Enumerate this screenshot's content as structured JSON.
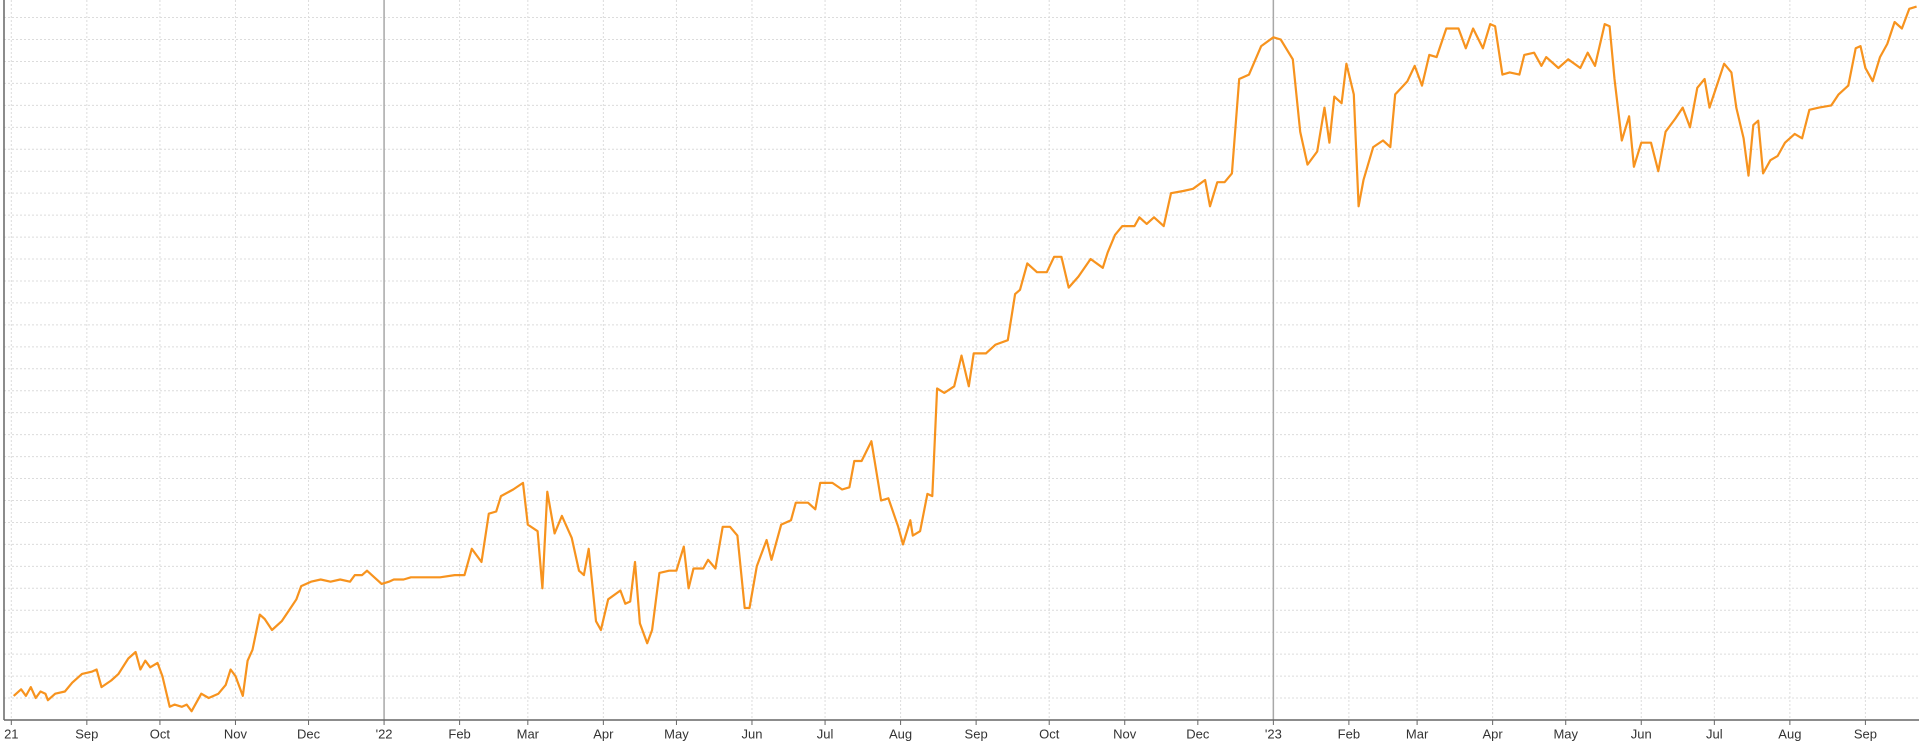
{
  "chart_data": {
    "type": "line",
    "color": "#f7931e",
    "grid": true,
    "xlim": [
      -3,
      783
    ],
    "ylim": [
      0,
      32.8
    ],
    "xticks": [
      {
        "value": 0,
        "label": "21"
      },
      {
        "value": 31,
        "label": "Sep"
      },
      {
        "value": 61,
        "label": "Oct"
      },
      {
        "value": 92,
        "label": "Nov"
      },
      {
        "value": 122,
        "label": "Dec"
      },
      {
        "value": 153,
        "label": "'22"
      },
      {
        "value": 184,
        "label": "Feb"
      },
      {
        "value": 212,
        "label": "Mar"
      },
      {
        "value": 243,
        "label": "Apr"
      },
      {
        "value": 273,
        "label": "May"
      },
      {
        "value": 304,
        "label": "Jun"
      },
      {
        "value": 334,
        "label": "Jul"
      },
      {
        "value": 365,
        "label": "Aug"
      },
      {
        "value": 396,
        "label": "Sep"
      },
      {
        "value": 426,
        "label": "Oct"
      },
      {
        "value": 457,
        "label": "Nov"
      },
      {
        "value": 487,
        "label": "Dec"
      },
      {
        "value": 518,
        "label": "'23"
      },
      {
        "value": 549,
        "label": "Feb"
      },
      {
        "value": 577,
        "label": "Mar"
      },
      {
        "value": 608,
        "label": "Apr"
      },
      {
        "value": 638,
        "label": "May"
      },
      {
        "value": 669,
        "label": "Jun"
      },
      {
        "value": 699,
        "label": "Jul"
      },
      {
        "value": 730,
        "label": "Aug"
      },
      {
        "value": 761,
        "label": "Sep"
      }
    ],
    "yticks": [
      0,
      1,
      2,
      3,
      4,
      5,
      6,
      7,
      8,
      9,
      10,
      11,
      12,
      13,
      14,
      15,
      16,
      17,
      18,
      19,
      20,
      21,
      22,
      23,
      24,
      25,
      26,
      27,
      28,
      29,
      30,
      31,
      32
    ],
    "x": [
      1,
      4,
      6,
      8,
      10,
      12,
      14,
      15,
      18,
      22,
      25,
      29,
      33,
      35,
      37,
      41,
      44,
      48,
      51,
      53,
      55,
      57,
      60,
      62,
      65,
      67,
      70,
      72,
      74,
      78,
      81,
      85,
      88,
      90,
      92,
      95,
      97,
      99,
      102,
      104,
      107,
      111,
      114,
      117,
      119,
      123,
      127,
      131,
      135,
      139,
      141,
      144,
      146,
      149,
      152,
      155,
      157,
      161,
      164,
      169,
      172,
      176,
      182,
      186,
      189,
      193,
      196,
      199,
      201,
      206,
      210,
      212,
      216,
      218,
      220,
      223,
      226,
      230,
      233,
      235,
      237,
      240,
      242,
      245,
      250,
      252,
      254,
      256,
      258,
      261,
      263,
      266,
      270,
      273,
      276,
      278,
      280,
      284,
      286,
      289,
      292,
      295,
      298,
      301,
      303,
      306,
      310,
      312,
      316,
      320,
      322,
      327,
      330,
      332,
      337,
      341,
      344,
      346,
      349,
      353,
      357,
      360,
      364,
      366,
      369,
      370,
      373,
      376,
      378,
      380,
      383,
      387,
      390,
      393,
      395,
      400,
      404,
      409,
      412,
      414,
      417,
      421,
      425,
      428,
      431,
      434,
      438,
      443,
      448,
      450,
      453,
      456,
      461,
      463,
      466,
      469,
      473,
      476,
      481,
      485,
      490,
      492,
      495,
      498,
      501,
      504,
      508,
      513,
      518,
      521,
      526,
      529,
      532,
      536,
      539,
      541,
      543,
      546,
      548,
      551,
      553,
      555,
      559,
      563,
      566,
      568,
      573,
      576,
      579,
      582,
      585,
      589,
      594,
      597,
      600,
      604,
      607,
      609,
      612,
      615,
      619,
      621,
      625,
      628,
      630,
      635,
      639,
      644,
      647,
      650,
      654,
      656,
      658,
      661,
      664,
      666,
      669,
      673,
      676,
      679,
      683,
      686,
      689,
      692,
      695,
      697,
      700,
      703,
      706,
      708,
      711,
      713,
      715,
      717,
      719,
      722,
      725,
      728,
      732,
      735,
      738,
      742,
      747,
      750,
      754,
      757,
      759,
      761,
      764,
      767,
      770,
      773,
      776,
      779,
      782
    ],
    "values": [
      1.1,
      1.4,
      1.1,
      1.5,
      1.0,
      1.3,
      1.2,
      0.9,
      1.2,
      1.3,
      1.7,
      2.1,
      2.2,
      2.3,
      1.5,
      1.8,
      2.1,
      2.8,
      3.1,
      2.3,
      2.7,
      2.4,
      2.6,
      2.0,
      0.6,
      0.7,
      0.6,
      0.7,
      0.4,
      1.2,
      1.0,
      1.2,
      1.6,
      2.3,
      2.0,
      1.1,
      2.7,
      3.2,
      4.8,
      4.6,
      4.1,
      4.5,
      5.0,
      5.5,
      6.1,
      6.3,
      6.4,
      6.3,
      6.4,
      6.3,
      6.6,
      6.6,
      6.8,
      6.5,
      6.2,
      6.3,
      6.4,
      6.4,
      6.5,
      6.5,
      6.5,
      6.5,
      6.6,
      6.6,
      7.8,
      7.2,
      9.4,
      9.5,
      10.2,
      10.5,
      10.8,
      8.9,
      8.6,
      6.0,
      10.4,
      8.5,
      9.3,
      8.3,
      6.8,
      6.6,
      7.8,
      4.5,
      4.1,
      5.5,
      5.9,
      5.3,
      5.4,
      7.2,
      4.4,
      3.5,
      4.1,
      6.7,
      6.8,
      6.8,
      7.9,
      6.0,
      6.9,
      6.9,
      7.3,
      6.9,
      8.8,
      8.8,
      8.4,
      5.1,
      5.1,
      7.0,
      8.2,
      7.3,
      8.9,
      9.1,
      9.9,
      9.9,
      9.6,
      10.8,
      10.8,
      10.5,
      10.6,
      11.8,
      11.8,
      12.7,
      10.0,
      10.1,
      8.8,
      8.0,
      9.1,
      8.4,
      8.6,
      10.3,
      10.2,
      15.1,
      14.9,
      15.2,
      16.6,
      15.2,
      16.7,
      16.7,
      17.1,
      17.3,
      19.4,
      19.6,
      20.8,
      20.4,
      20.4,
      21.1,
      21.1,
      19.7,
      20.2,
      21.0,
      20.6,
      21.3,
      22.1,
      22.5,
      22.5,
      22.9,
      22.6,
      22.9,
      22.5,
      24.0,
      24.1,
      24.2,
      24.6,
      23.4,
      24.5,
      24.5,
      24.9,
      29.2,
      29.4,
      30.7,
      31.1,
      31.0,
      30.1,
      26.8,
      25.3,
      25.9,
      27.9,
      26.3,
      28.4,
      28.1,
      29.9,
      28.5,
      23.4,
      24.6,
      26.1,
      26.4,
      26.1,
      28.5,
      29.1,
      29.8,
      28.9,
      30.3,
      30.2,
      31.5,
      31.5,
      30.6,
      31.5,
      30.6,
      31.7,
      31.6,
      29.4,
      29.5,
      29.4,
      30.3,
      30.4,
      29.8,
      30.2,
      29.7,
      30.1,
      29.7,
      30.4,
      29.8,
      31.7,
      31.6,
      29.2,
      26.4,
      27.5,
      25.2,
      26.3,
      26.3,
      25.0,
      26.8,
      27.4,
      27.9,
      27.0,
      28.8,
      29.2,
      27.9,
      28.9,
      29.9,
      29.5,
      27.9,
      26.5,
      24.8,
      27.1,
      27.3,
      24.9,
      25.5,
      25.7,
      26.3,
      26.7,
      26.5,
      27.8,
      27.9,
      28.0,
      28.5,
      28.9,
      30.6,
      30.7,
      29.7,
      29.1,
      30.2,
      30.8,
      31.8,
      31.5,
      32.4,
      32.5
    ]
  }
}
